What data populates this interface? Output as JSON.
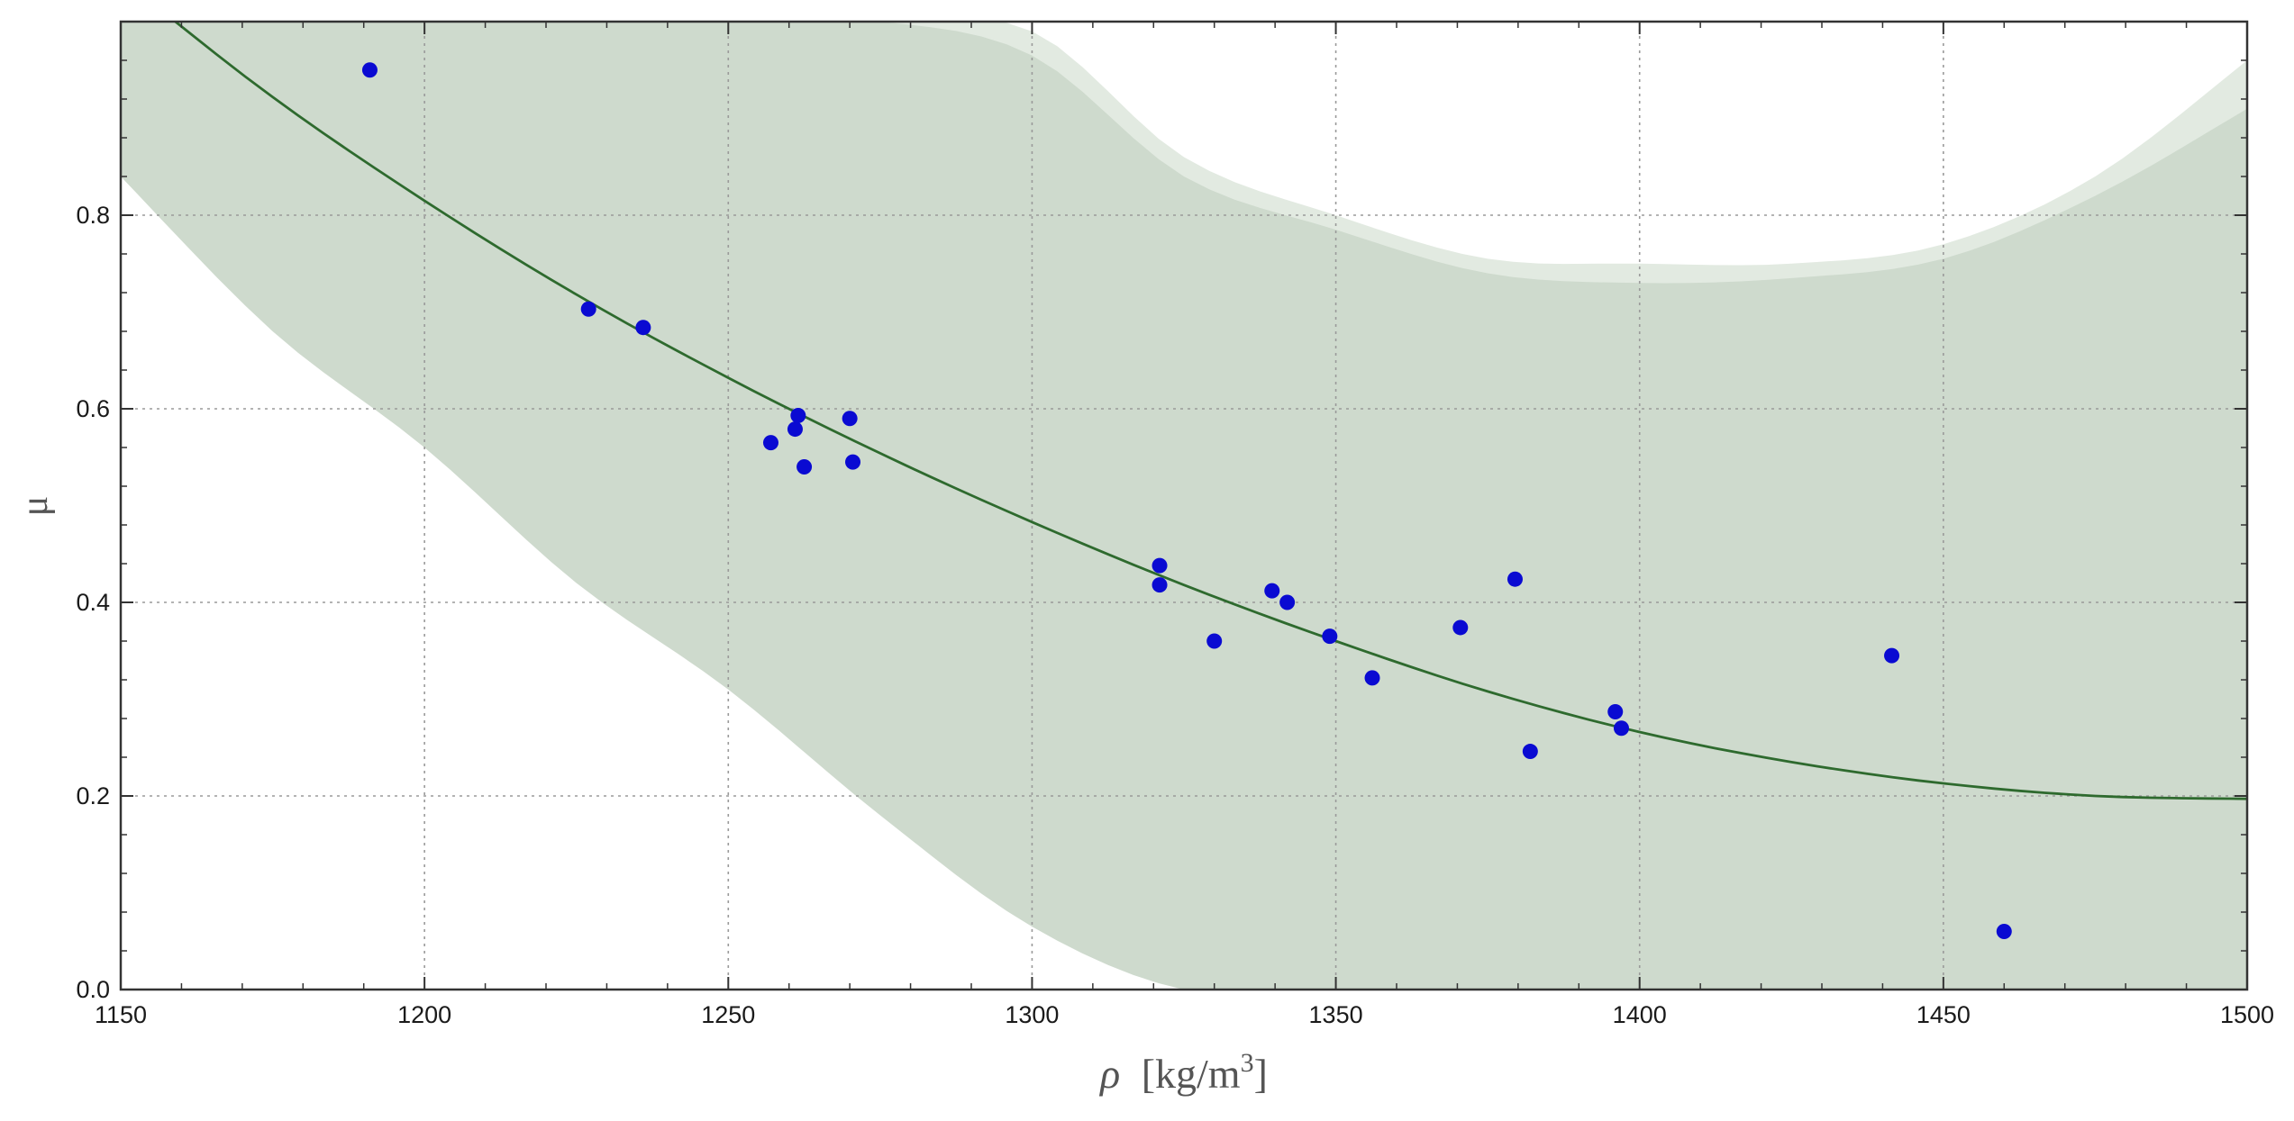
{
  "chart_data": {
    "type": "scatter",
    "title": "",
    "xlabel": "ρ [kg/m³]",
    "xlabel_parts": {
      "symbol": "ρ",
      "unit_prefix": "[kg/m",
      "unit_power": "3",
      "unit_suffix": "]"
    },
    "ylabel": "μ",
    "xlim": [
      1150,
      1500
    ],
    "ylim": [
      0.0,
      1.0
    ],
    "grid": true,
    "legend": "none",
    "x_ticks": [
      1150,
      1200,
      1250,
      1300,
      1350,
      1400,
      1450,
      1500
    ],
    "x_tick_labels": [
      "1150",
      "1200",
      "1250",
      "1300",
      "1350",
      "1400",
      "1450",
      "1500"
    ],
    "y_ticks": [
      0.0,
      0.2,
      0.4,
      0.6,
      0.8
    ],
    "y_tick_labels": [
      "0.0",
      "0.2",
      "0.4",
      "0.6",
      "0.8"
    ],
    "colors": {
      "points": "#0a0ad2",
      "fit": "#2e6a2e",
      "band_inner": "#cedacd",
      "band_outer": "#e2eae1",
      "grid": "#9a9a9a"
    },
    "points": [
      {
        "x": 1191,
        "y": 0.95
      },
      {
        "x": 1227,
        "y": 0.703
      },
      {
        "x": 1236,
        "y": 0.684
      },
      {
        "x": 1257,
        "y": 0.565
      },
      {
        "x": 1261,
        "y": 0.579
      },
      {
        "x": 1261.5,
        "y": 0.593
      },
      {
        "x": 1262.5,
        "y": 0.54
      },
      {
        "x": 1270,
        "y": 0.59
      },
      {
        "x": 1270.5,
        "y": 0.545
      },
      {
        "x": 1321,
        "y": 0.438
      },
      {
        "x": 1321,
        "y": 0.418
      },
      {
        "x": 1330,
        "y": 0.36
      },
      {
        "x": 1339.5,
        "y": 0.412
      },
      {
        "x": 1342,
        "y": 0.4
      },
      {
        "x": 1349,
        "y": 0.365
      },
      {
        "x": 1356,
        "y": 0.322
      },
      {
        "x": 1370.5,
        "y": 0.374
      },
      {
        "x": 1379.5,
        "y": 0.424
      },
      {
        "x": 1382,
        "y": 0.246
      },
      {
        "x": 1396,
        "y": 0.287
      },
      {
        "x": 1397,
        "y": 0.27
      },
      {
        "x": 1441.5,
        "y": 0.345
      },
      {
        "x": 1460,
        "y": 0.06
      }
    ],
    "fit_curve": {
      "x": [
        1150,
        1175,
        1200,
        1225,
        1250,
        1275,
        1300,
        1325,
        1350,
        1375,
        1400,
        1425,
        1450,
        1475,
        1500
      ],
      "y": [
        1.045,
        0.922,
        0.815,
        0.718,
        0.632,
        0.554,
        0.483,
        0.418,
        0.36,
        0.308,
        0.266,
        0.235,
        0.213,
        0.2,
        0.197
      ]
    },
    "band_outer": {
      "x": [
        1150,
        1175,
        1200,
        1225,
        1250,
        1275,
        1300,
        1325,
        1350,
        1375,
        1400,
        1425,
        1450,
        1475,
        1500
      ],
      "upper": [
        1.0,
        1.0,
        1.0,
        1.0,
        1.0,
        1.0,
        0.99,
        0.86,
        0.8,
        0.755,
        0.75,
        0.75,
        0.77,
        0.84,
        0.96
      ],
      "lower": [
        0.89,
        0.72,
        0.6,
        0.46,
        0.35,
        0.22,
        0.11,
        0.0,
        0.0,
        0.0,
        0.0,
        0.0,
        0.0,
        0.0,
        0.0
      ]
    },
    "band_inner": {
      "x": [
        1150,
        1175,
        1200,
        1225,
        1250,
        1275,
        1300,
        1325,
        1350,
        1375,
        1400,
        1425,
        1450,
        1475,
        1500
      ],
      "upper": [
        1.0,
        1.0,
        1.0,
        1.0,
        1.0,
        1.0,
        0.965,
        0.84,
        0.785,
        0.74,
        0.73,
        0.735,
        0.755,
        0.82,
        0.91
      ],
      "lower": [
        0.84,
        0.68,
        0.56,
        0.42,
        0.31,
        0.18,
        0.065,
        0.0,
        0.0,
        0.0,
        0.0,
        0.0,
        0.0,
        0.0,
        0.0
      ]
    }
  }
}
